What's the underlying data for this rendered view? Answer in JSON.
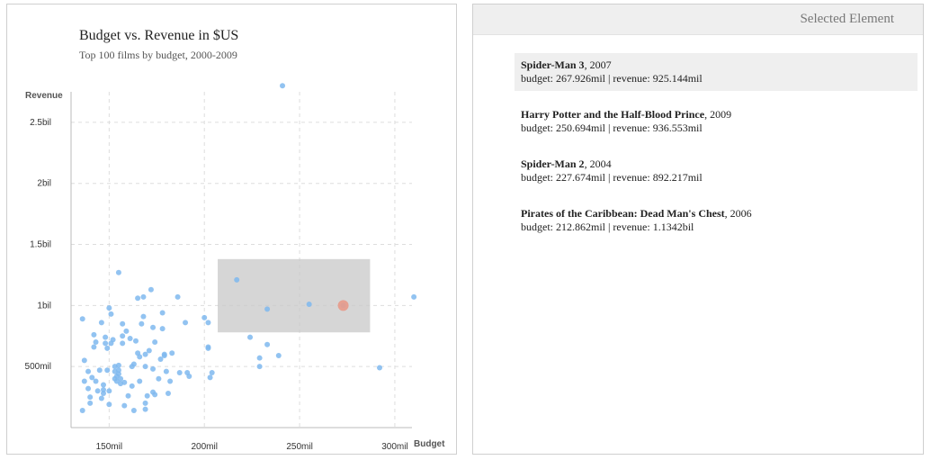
{
  "chart": {
    "title": "Budget vs. Revenue in $US",
    "subtitle": "Top 100 films by budget, 2000-2009"
  },
  "chart_data": {
    "type": "scatter",
    "title": "Budget vs. Revenue in $US",
    "subtitle": "Top 100 films by budget, 2000-2009",
    "xlabel": "Budget",
    "ylabel": "Revenue",
    "x_ticks": [
      {
        "value": 150,
        "label": "150mil"
      },
      {
        "value": 200,
        "label": "200mil"
      },
      {
        "value": 250,
        "label": "250mil"
      },
      {
        "value": 300,
        "label": "300mil"
      }
    ],
    "y_ticks": [
      {
        "value": 0.5,
        "label": "500mil"
      },
      {
        "value": 1.0,
        "label": "1bil"
      },
      {
        "value": 1.5,
        "label": "1.5bil"
      },
      {
        "value": 2.0,
        "label": "2bil"
      },
      {
        "value": 2.5,
        "label": "2.5bil"
      }
    ],
    "xlim": [
      130,
      309
    ],
    "ylim": [
      0,
      2.75
    ],
    "x_unit": "mil",
    "y_unit": "bil",
    "grid": true,
    "colors": {
      "point": "#7fb8ee",
      "highlight": "#e89a8a",
      "brush": "#c8c8c8"
    },
    "brush": {
      "x": [
        207,
        287
      ],
      "y": [
        0.78,
        1.38
      ]
    },
    "highlight": {
      "x": 272.9,
      "y": 1.0
    },
    "points": [
      [
        241,
        2.8
      ],
      [
        310,
        1.07
      ],
      [
        217,
        1.21
      ],
      [
        255,
        1.01
      ],
      [
        233,
        0.97
      ],
      [
        272.9,
        1.0
      ],
      [
        224,
        0.74
      ],
      [
        233,
        0.68
      ],
      [
        229,
        0.57
      ],
      [
        229,
        0.5
      ],
      [
        239,
        0.59
      ],
      [
        292,
        0.49
      ],
      [
        204,
        0.45
      ],
      [
        203,
        0.41
      ],
      [
        200,
        0.9
      ],
      [
        202,
        0.86
      ],
      [
        202,
        0.66
      ],
      [
        202,
        0.65
      ],
      [
        136,
        0.89
      ],
      [
        137,
        0.55
      ],
      [
        137,
        0.38
      ],
      [
        136,
        0.14
      ],
      [
        139,
        0.46
      ],
      [
        139,
        0.32
      ],
      [
        140,
        0.25
      ],
      [
        140,
        0.2
      ],
      [
        141,
        0.41
      ],
      [
        142,
        0.76
      ],
      [
        142,
        0.66
      ],
      [
        143,
        0.7
      ],
      [
        143,
        0.38
      ],
      [
        144,
        0.3
      ],
      [
        145,
        0.47
      ],
      [
        146,
        0.86
      ],
      [
        146,
        0.24
      ],
      [
        147,
        0.35
      ],
      [
        147,
        0.28
      ],
      [
        147,
        0.31
      ],
      [
        148,
        0.74
      ],
      [
        148,
        0.69
      ],
      [
        149,
        0.65
      ],
      [
        149,
        0.47
      ],
      [
        150,
        0.98
      ],
      [
        150,
        0.3
      ],
      [
        150,
        0.19
      ],
      [
        151,
        0.93
      ],
      [
        151,
        0.69
      ],
      [
        152,
        0.72
      ],
      [
        153,
        0.5
      ],
      [
        153,
        0.4
      ],
      [
        153,
        0.46
      ],
      [
        154,
        0.38
      ],
      [
        154,
        0.42
      ],
      [
        155,
        1.27
      ],
      [
        155,
        0.51
      ],
      [
        155,
        0.47
      ],
      [
        156,
        0.4
      ],
      [
        157,
        0.85
      ],
      [
        157,
        0.69
      ],
      [
        157,
        0.75
      ],
      [
        158,
        0.37
      ],
      [
        158,
        0.18
      ],
      [
        159,
        0.79
      ],
      [
        160,
        0.26
      ],
      [
        161,
        0.73
      ],
      [
        162,
        0.5
      ],
      [
        162,
        0.34
      ],
      [
        163,
        0.14
      ],
      [
        163,
        0.52
      ],
      [
        164,
        0.71
      ],
      [
        165,
        1.06
      ],
      [
        165,
        0.61
      ],
      [
        166,
        0.58
      ],
      [
        166,
        0.38
      ],
      [
        167,
        0.85
      ],
      [
        168,
        1.07
      ],
      [
        168,
        0.91
      ],
      [
        169,
        0.6
      ],
      [
        169,
        0.5
      ],
      [
        169,
        0.2
      ],
      [
        169,
        0.15
      ],
      [
        170,
        0.26
      ],
      [
        171,
        0.63
      ],
      [
        172,
        1.13
      ],
      [
        173,
        0.82
      ],
      [
        173,
        0.48
      ],
      [
        173,
        0.29
      ],
      [
        174,
        0.27
      ],
      [
        176,
        0.4
      ],
      [
        177,
        0.56
      ],
      [
        178,
        0.94
      ],
      [
        178,
        0.81
      ],
      [
        179,
        0.59
      ],
      [
        180,
        0.46
      ],
      [
        181,
        0.28
      ],
      [
        182,
        0.38
      ],
      [
        183,
        0.61
      ],
      [
        186,
        1.07
      ],
      [
        187,
        0.45
      ],
      [
        190,
        0.86
      ],
      [
        191,
        0.45
      ],
      [
        192,
        0.42
      ],
      [
        156,
        0.36
      ],
      [
        155,
        0.44
      ],
      [
        179,
        0.6
      ],
      [
        174,
        0.7
      ]
    ]
  },
  "selection": {
    "header": "Selected Element",
    "films": [
      {
        "title": "Spider-Man 3",
        "year": ", 2007",
        "details": "budget: 267.926mil | revenue: 925.144mil",
        "selected": true
      },
      {
        "title": "Harry Potter and the Half-Blood Prince",
        "year": ", 2009",
        "details": "budget: 250.694mil | revenue: 936.553mil",
        "selected": false
      },
      {
        "title": "Spider-Man 2",
        "year": ", 2004",
        "details": "budget: 227.674mil | revenue: 892.217mil",
        "selected": false
      },
      {
        "title": "Pirates of the Caribbean: Dead Man's Chest",
        "year": ", 2006",
        "details": "budget: 212.862mil | revenue: 1.1342bil",
        "selected": false
      }
    ]
  }
}
